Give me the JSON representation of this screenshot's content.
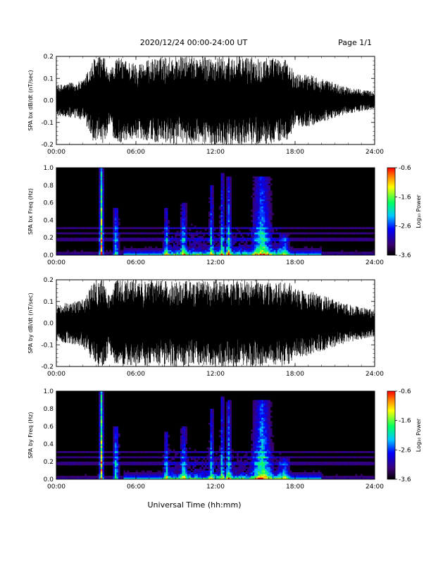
{
  "header": {
    "title": "2020/12/24  00:00-24:00 UT",
    "page": "Page 1/1"
  },
  "xlabel": "Universal Time (hh:mm)",
  "colorbar_label": "Log₁₀ Power",
  "colors": {
    "background": "#ffffff",
    "trace": "#000000",
    "spectrogram_bg": "#000000"
  },
  "chart_data": [
    {
      "type": "line",
      "id": "bx_wave",
      "title": "",
      "ylabel": "SPA bx dB/dt (nT/sec)",
      "xlim": [
        0,
        24
      ],
      "ylim": [
        -0.2,
        0.2
      ],
      "xticks": [
        "00:00",
        "06:00",
        "12:00",
        "18:00",
        "24:00"
      ],
      "yticks": [
        "0.2",
        "0.1",
        "0.0",
        "-0.1",
        "-0.2"
      ],
      "grid": false,
      "envelope_hours": [
        0,
        1,
        2,
        2.9,
        3.6,
        4.0,
        4.5,
        6,
        8,
        10,
        12,
        14,
        16,
        17.5,
        18,
        19,
        20,
        22,
        24
      ],
      "envelope_amp": [
        0.07,
        0.08,
        0.09,
        0.2,
        0.2,
        0.12,
        0.2,
        0.17,
        0.2,
        0.2,
        0.2,
        0.2,
        0.2,
        0.18,
        0.12,
        0.12,
        0.1,
        0.06,
        0.04
      ]
    },
    {
      "type": "heatmap",
      "id": "bx_spec",
      "title": "",
      "ylabel": "SPA bx Freq (Hz)",
      "xlim": [
        0,
        24
      ],
      "ylim": [
        0,
        1.0
      ],
      "xticks": [
        "00:00",
        "06:00",
        "12:00",
        "18:00",
        "24:00"
      ],
      "yticks": [
        "1.0",
        "0.8",
        "0.6",
        "0.4",
        "0.2",
        "0.0"
      ],
      "colorbar": {
        "label": "Log₁₀ Power",
        "range": [
          -3.6,
          -0.6
        ],
        "ticks": [
          "-0.6",
          "-1.6",
          "-2.6",
          "-3.6"
        ]
      },
      "bursts": [
        {
          "t": 3.4,
          "width": 0.2,
          "fmax": 1.0,
          "level": 0.95
        },
        {
          "t": 4.5,
          "width": 0.3,
          "fmax": 0.55,
          "level": 0.55
        },
        {
          "t": 8.3,
          "width": 0.2,
          "fmax": 0.55,
          "level": 0.45
        },
        {
          "t": 9.6,
          "width": 0.3,
          "fmax": 0.6,
          "level": 0.45
        },
        {
          "t": 11.7,
          "width": 0.2,
          "fmax": 0.8,
          "level": 0.5
        },
        {
          "t": 12.5,
          "width": 0.2,
          "fmax": 0.95,
          "level": 0.5
        },
        {
          "t": 13.0,
          "width": 0.25,
          "fmax": 0.9,
          "level": 0.5
        },
        {
          "t": 15.5,
          "width": 0.9,
          "fmax": 0.9,
          "level": 0.55
        },
        {
          "t": 17.2,
          "width": 0.5,
          "fmax": 0.25,
          "level": 0.45
        }
      ],
      "lines_hz": [
        0.18,
        0.25,
        0.31
      ]
    },
    {
      "type": "line",
      "id": "by_wave",
      "title": "",
      "ylabel": "SPA by dB/dt (nT/sec)",
      "xlim": [
        0,
        24
      ],
      "ylim": [
        -0.2,
        0.2
      ],
      "xticks": [
        "00:00",
        "06:00",
        "12:00",
        "18:00",
        "24:00"
      ],
      "yticks": [
        "0.2",
        "0.1",
        "0.0",
        "-0.1",
        "-0.2"
      ],
      "grid": false,
      "envelope_hours": [
        0,
        1,
        2,
        2.9,
        3.6,
        4.0,
        4.5,
        6,
        8,
        10,
        12,
        14,
        16,
        17.5,
        18,
        19,
        20,
        22,
        24
      ],
      "envelope_amp": [
        0.08,
        0.1,
        0.11,
        0.2,
        0.2,
        0.13,
        0.2,
        0.2,
        0.2,
        0.2,
        0.2,
        0.2,
        0.2,
        0.19,
        0.16,
        0.15,
        0.13,
        0.09,
        0.06
      ]
    },
    {
      "type": "heatmap",
      "id": "by_spec",
      "title": "",
      "ylabel": "SPA by Freq (Hz)",
      "xlim": [
        0,
        24
      ],
      "ylim": [
        0,
        1.0
      ],
      "xticks": [
        "00:00",
        "06:00",
        "12:00",
        "18:00",
        "24:00"
      ],
      "yticks": [
        "1.0",
        "0.8",
        "0.6",
        "0.4",
        "0.2",
        "0.0"
      ],
      "colorbar": {
        "label": "Log₁₀ Power",
        "range": [
          -3.6,
          -0.6
        ],
        "ticks": [
          "-0.6",
          "-1.6",
          "-2.6",
          "-3.6"
        ]
      },
      "bursts": [
        {
          "t": 3.4,
          "width": 0.2,
          "fmax": 1.0,
          "level": 0.95
        },
        {
          "t": 4.5,
          "width": 0.3,
          "fmax": 0.6,
          "level": 0.6
        },
        {
          "t": 8.3,
          "width": 0.2,
          "fmax": 0.55,
          "level": 0.45
        },
        {
          "t": 9.6,
          "width": 0.3,
          "fmax": 0.6,
          "level": 0.45
        },
        {
          "t": 11.7,
          "width": 0.2,
          "fmax": 0.8,
          "level": 0.5
        },
        {
          "t": 12.5,
          "width": 0.2,
          "fmax": 0.95,
          "level": 0.5
        },
        {
          "t": 13.0,
          "width": 0.25,
          "fmax": 0.9,
          "level": 0.5
        },
        {
          "t": 15.5,
          "width": 0.9,
          "fmax": 0.9,
          "level": 0.6
        },
        {
          "t": 17.2,
          "width": 0.5,
          "fmax": 0.25,
          "level": 0.5
        }
      ],
      "lines_hz": [
        0.18,
        0.25,
        0.31
      ]
    }
  ]
}
